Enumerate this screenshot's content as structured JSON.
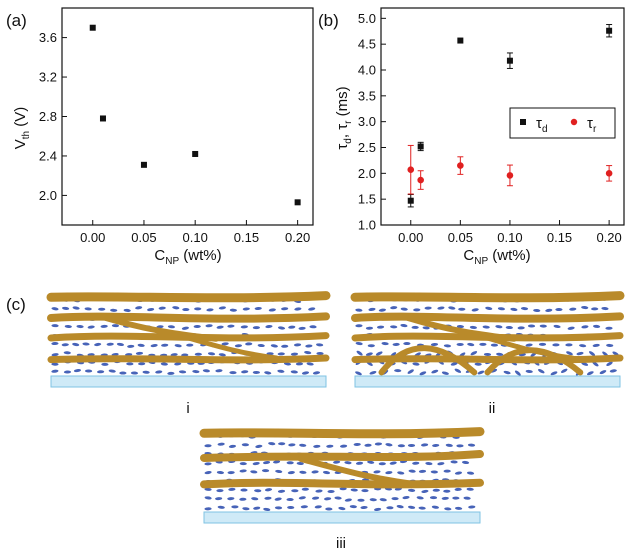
{
  "figure": {
    "panel_a": "(a)",
    "panel_b": "(b)",
    "panel_c": "(c)",
    "diagram_labels": [
      "i",
      "ii",
      "iii"
    ]
  },
  "chart_data": [
    {
      "type": "scatter",
      "panel": "(a)",
      "xlabel_main": "C",
      "xlabel_sub": "NP",
      "xlabel_unit": " (wt%)",
      "ylabel_main": "V",
      "ylabel_sub": "th",
      "ylabel_unit": " (V)",
      "xlim": [
        -0.03,
        0.215
      ],
      "ylim": [
        1.7,
        3.9
      ],
      "xticks": [
        0.0,
        0.05,
        0.1,
        0.15,
        0.2
      ],
      "xtick_labels": [
        "0.00",
        "0.05",
        "0.10",
        "0.15",
        "0.20"
      ],
      "yticks": [
        2.0,
        2.4,
        2.8,
        3.2,
        3.6
      ],
      "ytick_labels": [
        "2.0",
        "2.4",
        "2.8",
        "3.2",
        "3.6"
      ],
      "series": [
        {
          "color": "#111111",
          "marker": "square",
          "x": [
            0.0,
            0.01,
            0.05,
            0.1,
            0.2
          ],
          "y": [
            3.7,
            2.78,
            2.31,
            2.42,
            1.93
          ]
        }
      ]
    },
    {
      "type": "scatter",
      "panel": "(b)",
      "xlabel_main": "C",
      "xlabel_sub": "NP",
      "xlabel_unit": " (wt%)",
      "ylabel_parts": [
        "τ",
        "d",
        ", τ",
        "r",
        " (ms)"
      ],
      "xlim": [
        -0.03,
        0.215
      ],
      "ylim": [
        1.0,
        5.2
      ],
      "xticks": [
        0.0,
        0.05,
        0.1,
        0.15,
        0.2
      ],
      "xtick_labels": [
        "0.00",
        "0.05",
        "0.10",
        "0.15",
        "0.20"
      ],
      "yticks": [
        1.0,
        1.5,
        2.0,
        2.5,
        3.0,
        3.5,
        4.0,
        4.5,
        5.0
      ],
      "ytick_labels": [
        "1.0",
        "1.5",
        "2.0",
        "2.5",
        "3.0",
        "3.5",
        "4.0",
        "4.5",
        "5.0"
      ],
      "legend_position": "right",
      "series": [
        {
          "legend_main": "τ",
          "legend_sub": "d",
          "color": "#111111",
          "marker": "square",
          "x": [
            0.0,
            0.01,
            0.05,
            0.1,
            0.2
          ],
          "y": [
            1.47,
            2.52,
            4.57,
            4.18,
            4.76
          ],
          "err": [
            0.12,
            0.08,
            0.0,
            0.15,
            0.12
          ]
        },
        {
          "legend_main": "τ",
          "legend_sub": "r",
          "color": "#e02020",
          "marker": "circle",
          "x": [
            0.0,
            0.01,
            0.05,
            0.1,
            0.2
          ],
          "y": [
            2.07,
            1.87,
            2.15,
            1.96,
            2.0
          ],
          "err": [
            0.47,
            0.18,
            0.17,
            0.2,
            0.15
          ]
        }
      ]
    }
  ]
}
